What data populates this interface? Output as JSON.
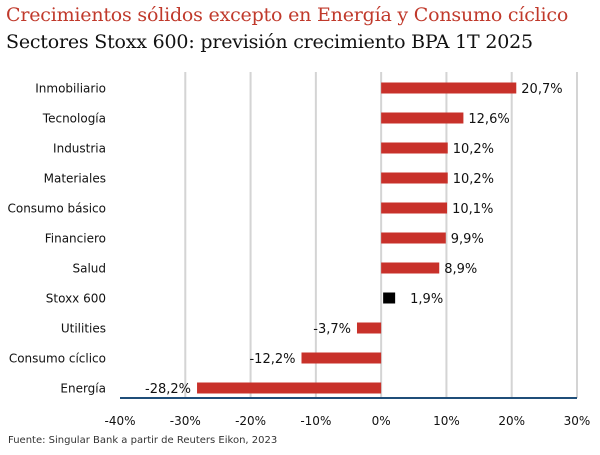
{
  "title": "Crecimientos sólidos excepto en Energía y Consumo cíclico",
  "subtitle": "Sectores Stoxx 600: previsión crecimiento BPA 1T 2025",
  "source": "Fuente: Singular Bank a partir de Reuters Eikon, 2023",
  "colors": {
    "title": "#c0392b",
    "bar": "#c8312a",
    "highlight_bar": "#000000",
    "grid": "#d4d4d4",
    "axis": "#1f4e79"
  },
  "chart_data": {
    "type": "bar",
    "orientation": "horizontal",
    "title": "Crecimientos sólidos excepto en Energía y Consumo cíclico",
    "subtitle": "Sectores Stoxx 600: previsión crecimiento BPA 1T 2025",
    "categories": [
      "Inmobiliario",
      "Tecnología",
      "Industria",
      "Materiales",
      "Consumo básico",
      "Financiero",
      "Salud",
      "Stoxx 600",
      "Utilities",
      "Consumo cíclico",
      "Energía"
    ],
    "values": [
      20.7,
      12.6,
      10.2,
      10.2,
      10.1,
      9.9,
      8.9,
      1.9,
      -3.7,
      -12.2,
      -28.2
    ],
    "value_labels": [
      "20,7%",
      "12,6%",
      "10,2%",
      "10,2%",
      "10,1%",
      "9,9%",
      "8,9%",
      "1,9%",
      "-3,7%",
      "-12,2%",
      "-28,2%"
    ],
    "highlight": "Stoxx 600",
    "xlim": [
      -40,
      30
    ],
    "xticks": [
      -40,
      -30,
      -20,
      -10,
      0,
      10,
      20,
      30
    ],
    "xtick_labels": [
      "-40%",
      "-30%",
      "-20%",
      "-10%",
      "0%",
      "10%",
      "20%",
      "30%"
    ],
    "xlabel": "",
    "ylabel": "",
    "grid": true,
    "legend": "none"
  }
}
